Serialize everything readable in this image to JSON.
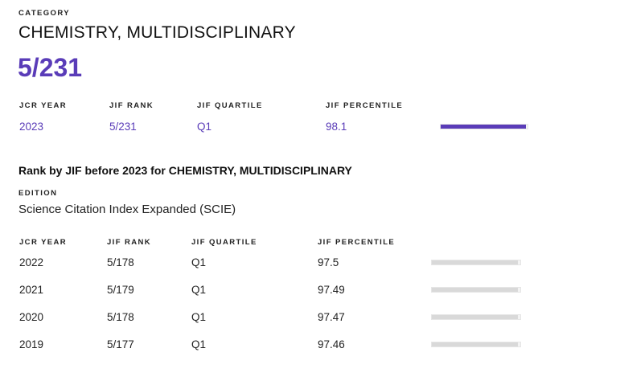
{
  "category": {
    "label": "CATEGORY",
    "name": "CHEMISTRY, MULTIDISCIPLINARY",
    "rank": "5/231"
  },
  "current": {
    "headers": {
      "year": "JCR YEAR",
      "rank": "JIF RANK",
      "quartile": "JIF QUARTILE",
      "percentile": "JIF PERCENTILE"
    },
    "year": "2023",
    "rank": "5/231",
    "quartile": "Q1",
    "percentile": "98.1",
    "percentile_value": 98.1,
    "bar_color": "#5a3cb8"
  },
  "history": {
    "title": "Rank by JIF before 2023 for CHEMISTRY, MULTIDISCIPLINARY",
    "edition_label": "EDITION",
    "edition": "Science Citation Index Expanded (SCIE)",
    "headers": {
      "year": "JCR YEAR",
      "rank": "JIF RANK",
      "quartile": "JIF QUARTILE",
      "percentile": "JIF PERCENTILE"
    },
    "bar_color": "#d9d9d9",
    "rows": [
      {
        "year": "2022",
        "rank": "5/178",
        "quartile": "Q1",
        "percentile": "97.5",
        "percentile_value": 97.5
      },
      {
        "year": "2021",
        "rank": "5/179",
        "quartile": "Q1",
        "percentile": "97.49",
        "percentile_value": 97.49
      },
      {
        "year": "2020",
        "rank": "5/178",
        "quartile": "Q1",
        "percentile": "97.47",
        "percentile_value": 97.47
      },
      {
        "year": "2019",
        "rank": "5/177",
        "quartile": "Q1",
        "percentile": "97.46",
        "percentile_value": 97.46
      }
    ]
  }
}
